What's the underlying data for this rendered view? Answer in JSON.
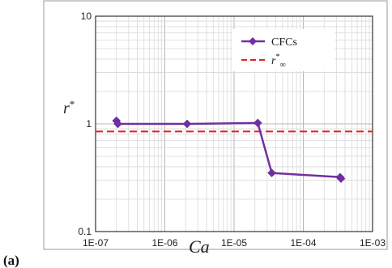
{
  "panel_label": "(a)",
  "chart_data": {
    "type": "line",
    "xscale": "log",
    "yscale": "log",
    "xlim": [
      1e-07,
      0.001
    ],
    "ylim": [
      0.1,
      10
    ],
    "xlabel": "Ca",
    "ylabel": "r",
    "ylabel_suffix": "*",
    "x_tick_labels": [
      "1E-07",
      "1E-06",
      "1E-05",
      "1E-04",
      "1E-03"
    ],
    "y_tick_labels": [
      "0.1",
      "1",
      "10"
    ],
    "grid": true,
    "legend_position": "top-right",
    "series": [
      {
        "name": "CFCs",
        "color": "#7030A0",
        "marker": "diamond",
        "points": [
          {
            "x": 2e-07,
            "y": 1.07
          },
          {
            "x": 2.1e-07,
            "y": 1.0
          },
          {
            "x": 2.1e-06,
            "y": 1.0
          },
          {
            "x": 2.2e-05,
            "y": 1.02
          },
          {
            "x": 3.5e-05,
            "y": 0.35
          },
          {
            "x": 0.00034,
            "y": 0.32
          },
          {
            "x": 0.00035,
            "y": 0.31
          }
        ]
      }
    ],
    "reference_lines": [
      {
        "name": "r*∞",
        "name_base": "r",
        "name_sup": "*",
        "name_sub": "∞",
        "y": 0.85,
        "color": "#E02020",
        "style": "dashed"
      }
    ]
  }
}
